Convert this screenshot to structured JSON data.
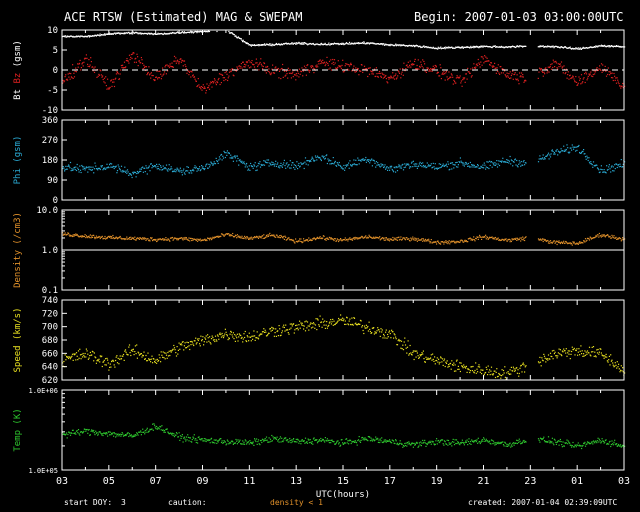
{
  "header": {
    "title": "ACE RTSW (Estimated) MAG & SWEPAM",
    "begin": "Begin: 2007-01-03 03:00:00UTC"
  },
  "footer": {
    "start_doy_label": "start DOY:",
    "start_doy_value": "3",
    "caution_label": "caution:",
    "caution_text": "density < 1",
    "created": "created: 2007-01-04 02:39:09UTC"
  },
  "colors": {
    "background": "#000000",
    "axis": "#ffffff",
    "bt": "#ffffff",
    "bz": "#e02020",
    "phi": "#2aa9d2",
    "density": "#e0902a",
    "speed": "#e8e020",
    "temp": "#2ec82e",
    "caution": "#e0902a"
  },
  "chart_data": [
    {
      "type": "scatter",
      "panel": "mag",
      "ylabel_parts": [
        "Bt",
        "Bz",
        "(gsm)"
      ],
      "ylim": [
        -10,
        10
      ],
      "yticks": [
        "10",
        "5",
        "0",
        "-5",
        "-10"
      ],
      "zero_line": "dashed",
      "x_hours": [
        0,
        1,
        2,
        3,
        4,
        5,
        6,
        7,
        8,
        9,
        10,
        11,
        12,
        13,
        14,
        15,
        16,
        17,
        18,
        19,
        20,
        21,
        22,
        23,
        24
      ],
      "series": [
        {
          "name": "Bt",
          "values": [
            8.6,
            8.5,
            9.2,
            9.4,
            9.1,
            9.5,
            9.8,
            10.2,
            6.3,
            6.5,
            6.8,
            6.6,
            6.7,
            6.9,
            6.4,
            6.2,
            5.6,
            5.8,
            6.0,
            5.9,
            6.1,
            6.0,
            5.4,
            6.2,
            5.9
          ]
        },
        {
          "name": "Bz",
          "values": [
            -3,
            3,
            -4,
            4,
            -2,
            3,
            -5,
            -1,
            2,
            0,
            -1,
            2,
            1,
            0,
            -2,
            2,
            0,
            -3,
            3,
            -1,
            -2,
            2,
            -3,
            1,
            -4
          ]
        }
      ]
    },
    {
      "type": "scatter",
      "panel": "phi",
      "ylabel": "Phi (gsm)",
      "ylim": [
        0,
        360
      ],
      "yticks": [
        "360",
        "270",
        "180",
        "90",
        "0"
      ],
      "x_hours": [
        0,
        1,
        2,
        3,
        4,
        5,
        6,
        7,
        8,
        9,
        10,
        11,
        12,
        13,
        14,
        15,
        16,
        17,
        18,
        19,
        20,
        21,
        22,
        23,
        24
      ],
      "values": [
        150,
        140,
        155,
        120,
        160,
        130,
        145,
        210,
        150,
        170,
        155,
        200,
        150,
        190,
        140,
        165,
        150,
        170,
        150,
        180,
        165,
        215,
        240,
        135,
        165
      ]
    },
    {
      "type": "scatter",
      "panel": "density",
      "ylabel": "Density (/cm3)",
      "yscale": "log",
      "ylim": [
        0.1,
        10
      ],
      "yticks": [
        "10.0",
        "1.0",
        "0.1"
      ],
      "x_hours": [
        0,
        1,
        2,
        3,
        4,
        5,
        6,
        7,
        8,
        9,
        10,
        11,
        12,
        13,
        14,
        15,
        16,
        17,
        18,
        19,
        20,
        21,
        22,
        23,
        24
      ],
      "values": [
        2.6,
        2.3,
        2.1,
        2.0,
        1.9,
        2.0,
        1.8,
        2.5,
        2.0,
        2.4,
        1.7,
        2.1,
        1.8,
        2.2,
        1.9,
        2.0,
        1.6,
        1.7,
        2.2,
        1.8,
        2.1,
        1.6,
        1.5,
        2.5,
        1.9
      ]
    },
    {
      "type": "scatter",
      "panel": "speed",
      "ylabel": "Speed (km/s)",
      "ylim": [
        620,
        740
      ],
      "yticks": [
        "740",
        "720",
        "700",
        "680",
        "660",
        "640",
        "620"
      ],
      "x_hours": [
        0,
        1,
        2,
        3,
        4,
        5,
        6,
        7,
        8,
        9,
        10,
        11,
        12,
        13,
        14,
        15,
        16,
        17,
        18,
        19,
        20,
        21,
        22,
        23,
        24
      ],
      "values": [
        650,
        660,
        645,
        665,
        650,
        670,
        680,
        690,
        685,
        695,
        700,
        705,
        710,
        700,
        690,
        660,
        650,
        640,
        635,
        630,
        645,
        660,
        665,
        660,
        635
      ]
    },
    {
      "type": "scatter",
      "panel": "temp",
      "ylabel": "Temp (K)",
      "yscale": "log",
      "ylim": [
        100000,
        1000000
      ],
      "yticks": [
        "1.0E+06",
        "1.0E+05"
      ],
      "x_hours": [
        0,
        1,
        2,
        3,
        4,
        5,
        6,
        7,
        8,
        9,
        10,
        11,
        12,
        13,
        14,
        15,
        16,
        17,
        18,
        19,
        20,
        21,
        22,
        23,
        24
      ],
      "values": [
        280000,
        310000,
        290000,
        270000,
        360000,
        260000,
        240000,
        230000,
        220000,
        250000,
        230000,
        240000,
        220000,
        250000,
        230000,
        210000,
        230000,
        220000,
        240000,
        210000,
        250000,
        230000,
        200000,
        240000,
        200000
      ]
    }
  ],
  "xaxis": {
    "label": "UTC(hours)",
    "tick_labels": [
      "03",
      "05",
      "07",
      "09",
      "11",
      "13",
      "15",
      "17",
      "19",
      "21",
      "23",
      "01",
      "03"
    ],
    "range_hours": [
      0,
      24
    ],
    "gap_hours": [
      19.8,
      20.3
    ]
  }
}
